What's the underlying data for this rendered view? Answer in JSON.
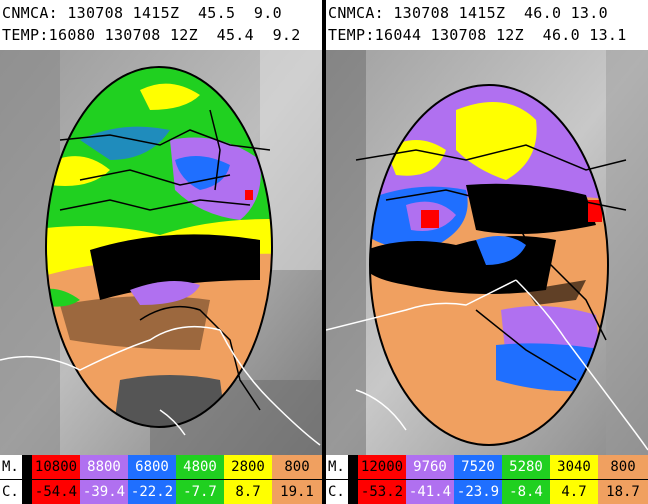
{
  "panels": [
    {
      "header_line1": "CNMCA: 130708 1415Z  45.5  9.0",
      "header_line2": "TEMP:16080 130708 12Z  45.4  9.2",
      "legend": {
        "label_top": "M.",
        "label_bottom": "C.",
        "heights": [
          "10800",
          "8800",
          "6800",
          "4800",
          "2800",
          "800"
        ],
        "temps": [
          "-54.4",
          "-39.4",
          "-22.2",
          "-7.7",
          "8.7",
          "19.1"
        ]
      }
    },
    {
      "header_line1": "CNMCA: 130708 1415Z  46.0 13.0",
      "header_line2": "TEMP:16044 130708 12Z  46.0 13.1",
      "legend": {
        "label_top": "M.",
        "label_bottom": "C.",
        "heights": [
          "12000",
          "9760",
          "7520",
          "5280",
          "3040",
          "800"
        ],
        "temps": [
          "-53.2",
          "-41.4",
          "-23.9",
          "-8.4",
          "4.7",
          "18.7"
        ]
      }
    }
  ],
  "palette": {
    "red": "#ff0000",
    "violet": "#b070f0",
    "blue": "#1f6fff",
    "green": "#20d020",
    "yellow": "#ffff00",
    "orange": "#f0a060",
    "label_bg": "#ffffff"
  }
}
